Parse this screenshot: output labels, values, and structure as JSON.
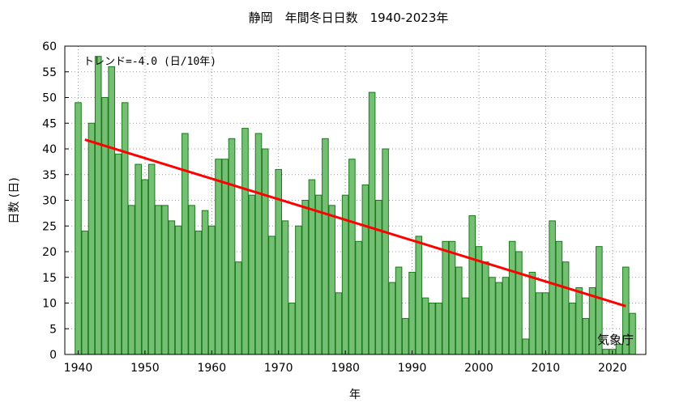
{
  "chart_data": {
    "type": "bar",
    "title": "静岡　年間冬日日数　1940-2023年",
    "xlabel": "年",
    "ylabel": "日数 (日)",
    "annotation": "トレンド=-4.0 (日/10年)",
    "credit": "気象庁",
    "xlim": [
      1938,
      2025
    ],
    "ylim": [
      0,
      60
    ],
    "x_ticks": [
      "1940",
      "1950",
      "1960",
      "1970",
      "1980",
      "1990",
      "2000",
      "2010",
      "2020"
    ],
    "y_ticks": [
      "0",
      "5",
      "10",
      "15",
      "20",
      "25",
      "30",
      "35",
      "40",
      "45",
      "50",
      "55",
      "60"
    ],
    "grid": true,
    "colors": {
      "bar_fill": "#74bf74",
      "bar_stroke": "#1a7a1a",
      "trend": "#ff0000",
      "grid": "#9a9a9a"
    },
    "x": [
      1940,
      1941,
      1942,
      1943,
      1944,
      1945,
      1946,
      1947,
      1948,
      1949,
      1950,
      1951,
      1952,
      1953,
      1954,
      1955,
      1956,
      1957,
      1958,
      1959,
      1960,
      1961,
      1962,
      1963,
      1964,
      1965,
      1966,
      1967,
      1968,
      1969,
      1970,
      1971,
      1972,
      1973,
      1974,
      1975,
      1976,
      1977,
      1978,
      1979,
      1980,
      1981,
      1982,
      1983,
      1984,
      1985,
      1986,
      1987,
      1988,
      1989,
      1990,
      1991,
      1992,
      1993,
      1994,
      1995,
      1996,
      1997,
      1998,
      1999,
      2000,
      2001,
      2002,
      2003,
      2004,
      2005,
      2006,
      2007,
      2008,
      2009,
      2010,
      2011,
      2012,
      2013,
      2014,
      2015,
      2016,
      2017,
      2018,
      2019,
      2020,
      2021,
      2022,
      2023
    ],
    "values": [
      49,
      24,
      45,
      58,
      50,
      56,
      39,
      49,
      29,
      37,
      34,
      37,
      29,
      29,
      26,
      25,
      43,
      29,
      24,
      28,
      25,
      38,
      38,
      42,
      18,
      44,
      31,
      43,
      40,
      23,
      36,
      26,
      10,
      25,
      30,
      34,
      31,
      42,
      29,
      12,
      31,
      38,
      22,
      33,
      51,
      30,
      40,
      14,
      17,
      7,
      16,
      23,
      11,
      10,
      10,
      22,
      22,
      17,
      11,
      27,
      21,
      18,
      15,
      14,
      15,
      22,
      20,
      3,
      16,
      12,
      12,
      26,
      22,
      18,
      10,
      13,
      7,
      13,
      21,
      1,
      1,
      2,
      17,
      8
    ],
    "trend": {
      "x": [
        1941,
        2022
      ],
      "y": [
        41.8,
        9.4
      ]
    }
  }
}
